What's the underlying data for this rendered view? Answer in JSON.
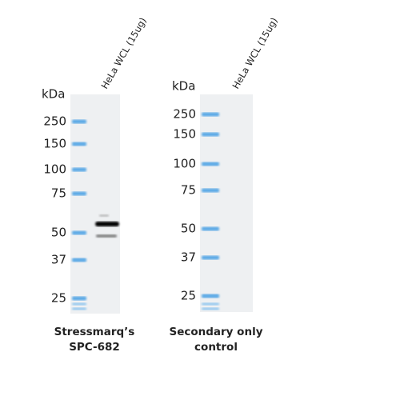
{
  "panels": [
    {
      "unit": "kDa",
      "lane_label": "HeLa WCL (15ug)",
      "markers": [
        250,
        150,
        100,
        75,
        50,
        37,
        25
      ],
      "caption": [
        "Stressmarq’s",
        "SPC-682"
      ]
    },
    {
      "unit": "kDa",
      "lane_label": "HeLa WCL (15ug)",
      "markers": [
        250,
        150,
        100,
        75,
        50,
        37,
        25
      ],
      "caption": [
        "Secondary only",
        "control"
      ]
    }
  ]
}
